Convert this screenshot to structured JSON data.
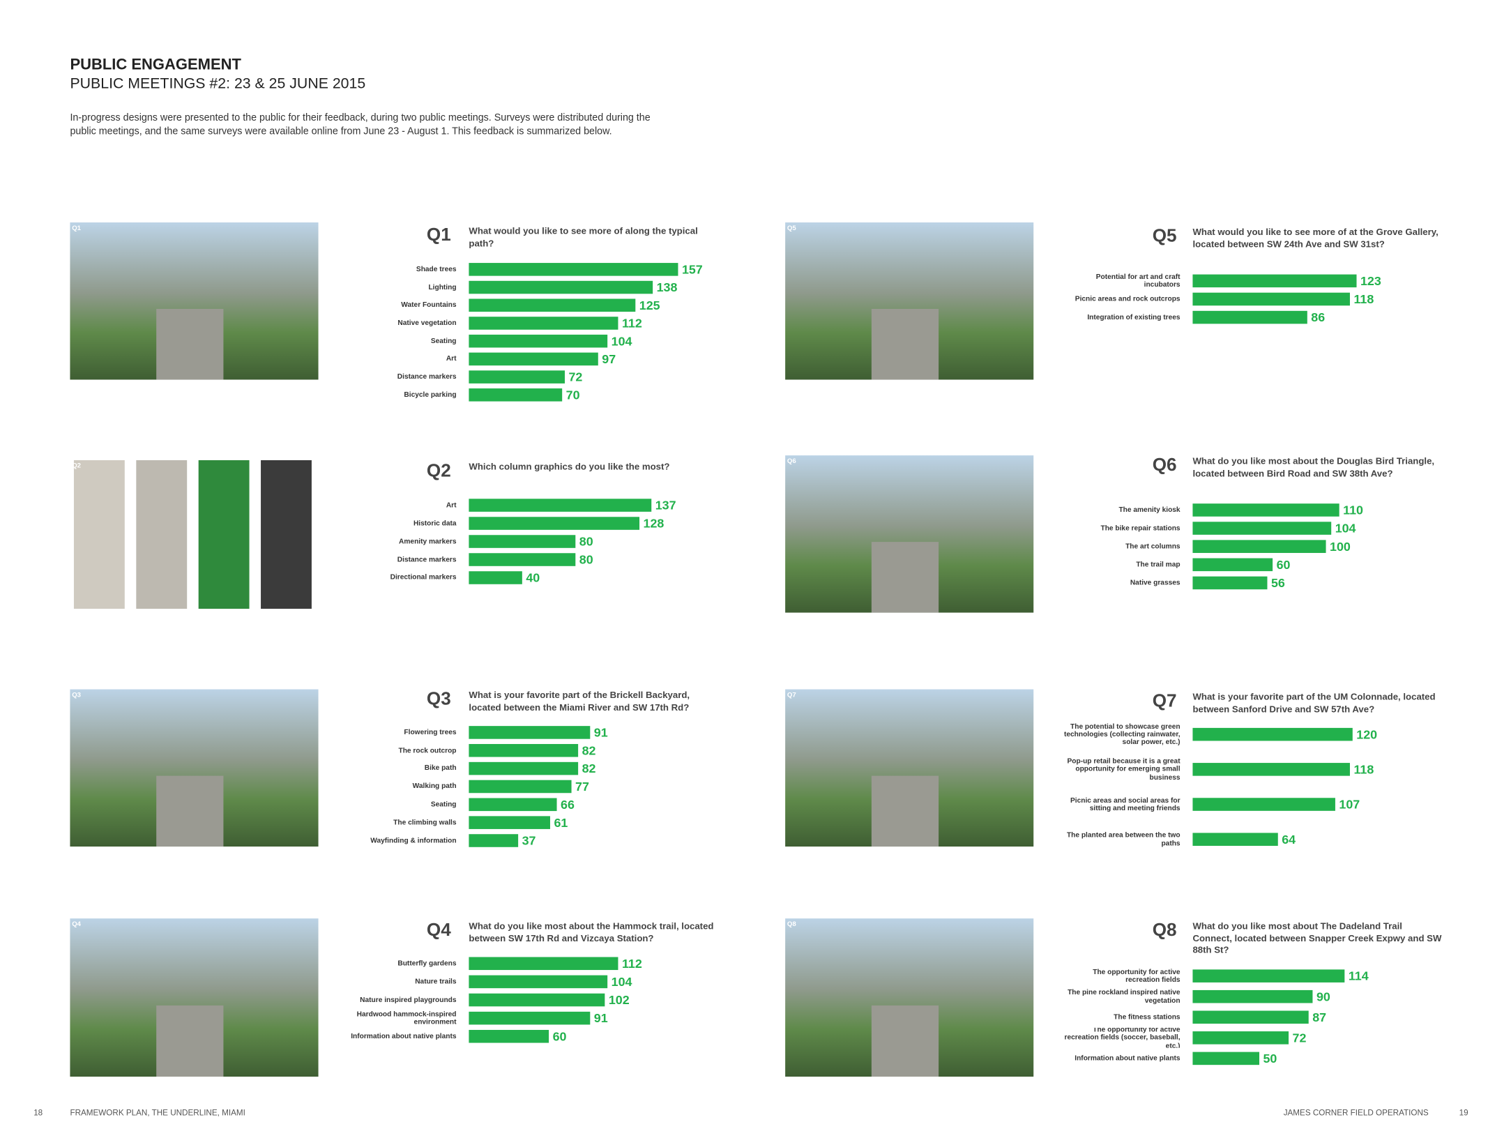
{
  "header": {
    "title": "PUBLIC ENGAGEMENT",
    "subtitle": "PUBLIC MEETINGS #2: 23 & 25 JUNE 2015",
    "intro": "In-progress designs were presented to the public for their feedback, during two public meetings. Surveys were distributed during the public meetings, and the same surveys were available online from June 23 - August 1. This feedback is summarized below."
  },
  "footer": {
    "left_page": "18",
    "left_text": "FRAMEWORK PLAN, THE UNDERLINE, MIAMI",
    "right_text": "JAMES CORNER FIELD OPERATIONS",
    "right_page": "19"
  },
  "chart_data": [
    {
      "type": "bar",
      "label": "Q1",
      "title": "What would you like to see more of along the typical path?",
      "color": "#22b14c",
      "categories": [
        "Shade trees",
        "Lighting",
        "Water Fountains",
        "Native vegetation",
        "Seating",
        "Art",
        "Distance markers",
        "Bicycle parking"
      ],
      "values": [
        157,
        138,
        125,
        112,
        104,
        97,
        72,
        70
      ]
    },
    {
      "type": "bar",
      "label": "Q2",
      "title": "Which column graphics do you like the most?",
      "color": "#22b14c",
      "categories": [
        "Art",
        "Historic data",
        "Amenity markers",
        "Distance markers",
        "Directional markers"
      ],
      "values": [
        137,
        128,
        80,
        80,
        40
      ]
    },
    {
      "type": "bar",
      "label": "Q3",
      "title": "What is your favorite part of the Brickell Backyard, located between the Miami River and SW 17th Rd?",
      "color": "#22b14c",
      "categories": [
        "Flowering trees",
        "The rock outcrop",
        "Bike path",
        "Walking path",
        "Seating",
        "The climbing walls",
        "Wayfinding & information"
      ],
      "values": [
        91,
        82,
        82,
        77,
        66,
        61,
        37
      ]
    },
    {
      "type": "bar",
      "label": "Q4",
      "title": "What do you like most about the Hammock trail, located between SW 17th Rd and Vizcaya Station?",
      "color": "#22b14c",
      "categories": [
        "Butterfly gardens",
        "Nature trails",
        "Nature inspired playgrounds",
        "Hardwood hammock-inspired environment",
        "Information about native plants"
      ],
      "values": [
        112,
        104,
        102,
        91,
        60
      ]
    },
    {
      "type": "bar",
      "label": "Q5",
      "title": "What would you like to see more of at the Grove Gallery, located between SW 24th Ave and SW 31st?",
      "color": "#22b14c",
      "categories": [
        "Potential for art and craft incubators",
        "Picnic areas and rock outcrops",
        "Integration of existing trees"
      ],
      "values": [
        123,
        118,
        86
      ]
    },
    {
      "type": "bar",
      "label": "Q6",
      "title": "What do you like most about the Douglas Bird Triangle, located between Bird Road and SW 38th Ave?",
      "color": "#22b14c",
      "categories": [
        "The amenity kiosk",
        "The bike repair stations",
        "The art columns",
        "The trail map",
        "Native grasses"
      ],
      "values": [
        110,
        104,
        100,
        60,
        56
      ]
    },
    {
      "type": "bar",
      "label": "Q7",
      "title": "What is your favorite part of the UM Colonnade, located between Sanford Drive and SW 57th Ave?",
      "color": "#22b14c",
      "categories": [
        "The potential to showcase green technologies (collecting rainwater, solar power, etc.)",
        "Pop-up retail because it is a great opportunity for emerging small business",
        "Picnic areas and social areas for sitting and meeting friends",
        "The planted area between the two paths"
      ],
      "values": [
        120,
        118,
        107,
        64
      ]
    },
    {
      "type": "bar",
      "label": "Q8",
      "title": "What do you like most about The Dadeland Trail Connect, located between Snapper Creek Expwy and SW 88th St?",
      "color": "#22b14c",
      "categories": [
        "The opportunity for active recreation fields",
        "The pine rockland inspired native vegetation",
        "The fitness stations",
        "The opportunity for active recreation fields (soccer, baseball, etc.)",
        "Information about native plants"
      ],
      "values": [
        114,
        90,
        87,
        72,
        50
      ]
    }
  ]
}
